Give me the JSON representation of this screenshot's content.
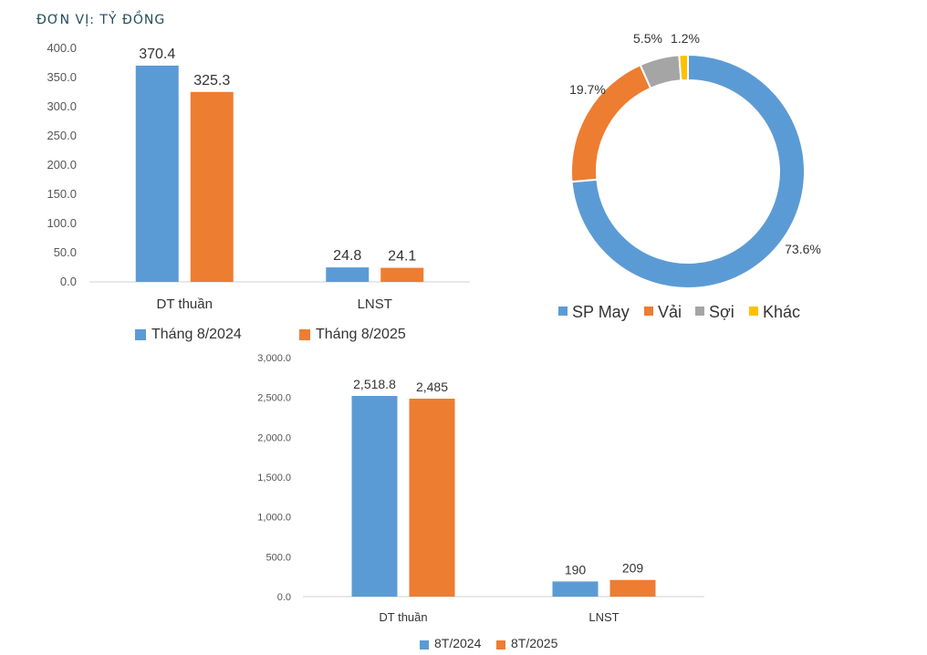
{
  "unit_label": "ĐƠN VỊ: TỶ ĐỒNG",
  "chart_data": [
    {
      "type": "bar",
      "categories": [
        "DT thuần",
        "LNST"
      ],
      "series": [
        {
          "name": "Tháng 8/2024",
          "values": [
            370.4,
            24.8
          ],
          "labels": [
            "370.4",
            "24.8"
          ],
          "color": "#5b9bd5"
        },
        {
          "name": "Tháng 8/2025",
          "values": [
            325.3,
            24.1
          ],
          "labels": [
            "325.3",
            "24.1"
          ],
          "color": "#ed7d31"
        }
      ],
      "ylim": [
        0,
        400
      ],
      "yticks": [
        "0.0",
        "50.0",
        "100.0",
        "150.0",
        "200.0",
        "250.0",
        "300.0",
        "350.0",
        "400.0"
      ],
      "legend": "bottom-left"
    },
    {
      "type": "pie",
      "donut": true,
      "slices": [
        {
          "name": "SP May",
          "value": 73.6,
          "label": "73.6%",
          "color": "#5b9bd5"
        },
        {
          "name": "Vải",
          "value": 19.7,
          "label": "19.7%",
          "color": "#ed7d31"
        },
        {
          "name": "Sợi",
          "value": 5.5,
          "label": "5.5%",
          "color": "#a5a5a5"
        },
        {
          "name": "Khác",
          "value": 1.2,
          "label": "1.2%",
          "color": "#ffc000"
        }
      ],
      "legend": "bottom"
    },
    {
      "type": "bar",
      "categories": [
        "DT thuần",
        "LNST"
      ],
      "series": [
        {
          "name": "8T/2024",
          "values": [
            2518.8,
            190
          ],
          "labels": [
            "2,518.8",
            "190"
          ],
          "color": "#5b9bd5"
        },
        {
          "name": "8T/2025",
          "values": [
            2485,
            209
          ],
          "labels": [
            "2,485",
            "209"
          ],
          "color": "#ed7d31"
        }
      ],
      "ylim": [
        0,
        3000
      ],
      "yticks": [
        "0.0",
        "500.0",
        "1,000.0",
        "1,500.0",
        "2,000.0",
        "2,500.0",
        "3,000.0"
      ],
      "legend": "bottom"
    }
  ]
}
